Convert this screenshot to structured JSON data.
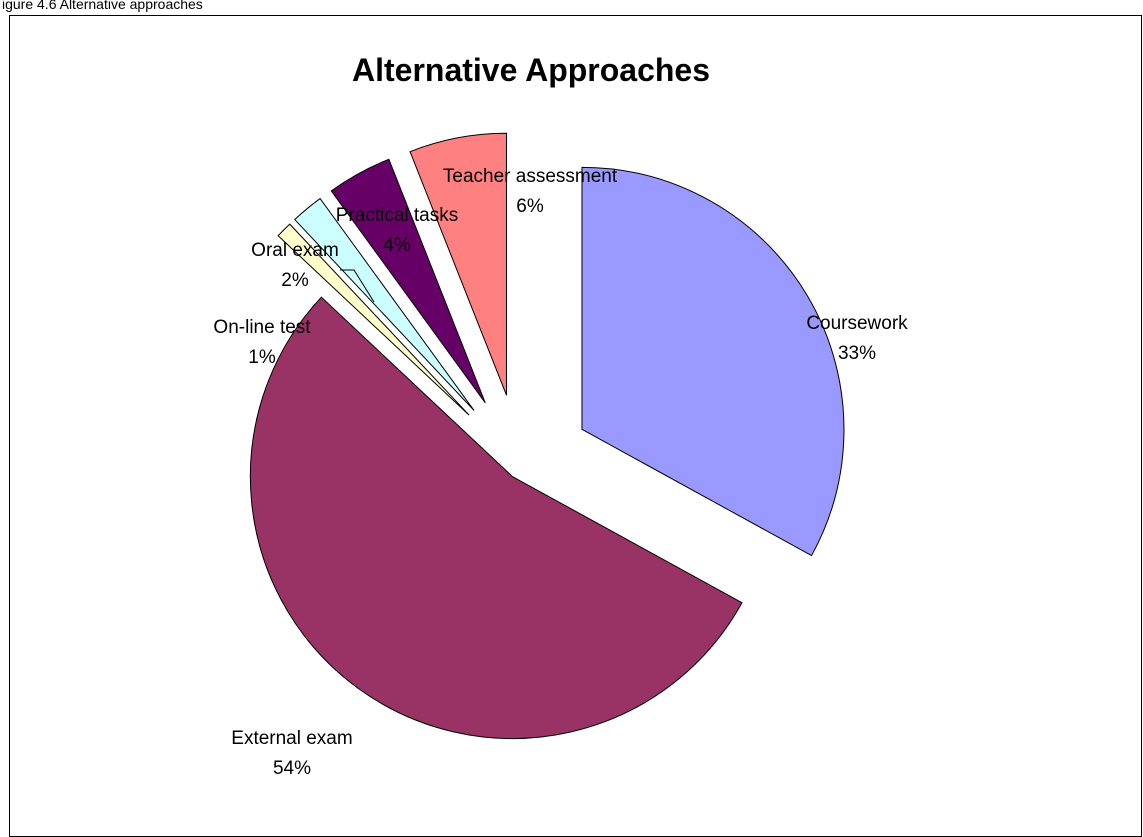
{
  "caption": "igure 4.6 Alternative approaches",
  "chart_data": {
    "type": "pie",
    "title": "Alternative Approaches",
    "exploded": true,
    "slices": [
      {
        "label": "Coursework",
        "value": 33,
        "pct_label": "33%",
        "color": "#9999FF"
      },
      {
        "label": "External exam",
        "value": 54,
        "pct_label": "54%",
        "color": "#993366"
      },
      {
        "label": "On-line test",
        "value": 1,
        "pct_label": "1%",
        "color": "#FFFFCC"
      },
      {
        "label": "Oral exam",
        "value": 2,
        "pct_label": "2%",
        "color": "#CCFFFF"
      },
      {
        "label": "Practical tasks",
        "value": 4,
        "pct_label": "4%",
        "color": "#660066"
      },
      {
        "label": "Teacher assessment",
        "value": 6,
        "pct_label": "6%",
        "color": "#FF8080"
      }
    ]
  }
}
